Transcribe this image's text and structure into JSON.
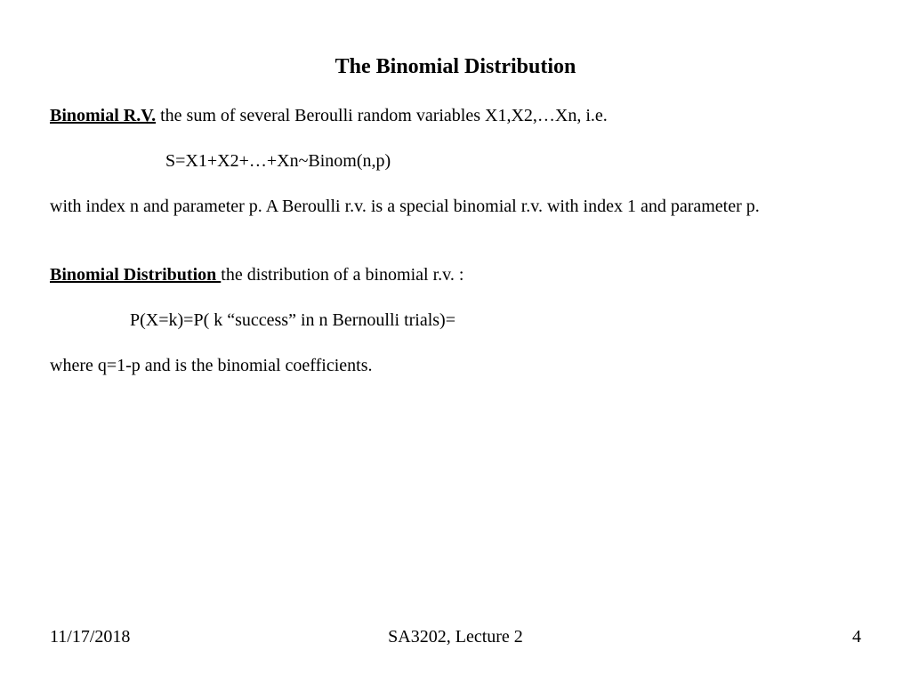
{
  "title": "The Binomial Distribution",
  "section1": {
    "term": "Binomial R.V.",
    "rest": "  the sum of several Beroulli random variables X1,X2,…Xn, i.e."
  },
  "formula1": "S=X1+X2+…+Xn~Binom(n,p)",
  "para1": "with  index  n and parameter p.  A Beroulli r.v. is a special binomial r.v. with index 1 and parameter p.",
  "section2": {
    "term": "Binomial Distribution ",
    "rest": "the distribution of a binomial r.v. :"
  },
  "formula2": "P(X=k)=P( k “success” in n  Bernoulli trials)=",
  "para2": "where q=1-p and         is the binomial coefficients.",
  "footer": {
    "date": "11/17/2018",
    "course": "SA3202, Lecture 2",
    "page": "4"
  },
  "style": {
    "bg": "#ffffff",
    "text": "#000000",
    "font": "Times New Roman",
    "title_fontsize": 24,
    "body_fontsize": 20,
    "footer_fontsize": 20
  }
}
